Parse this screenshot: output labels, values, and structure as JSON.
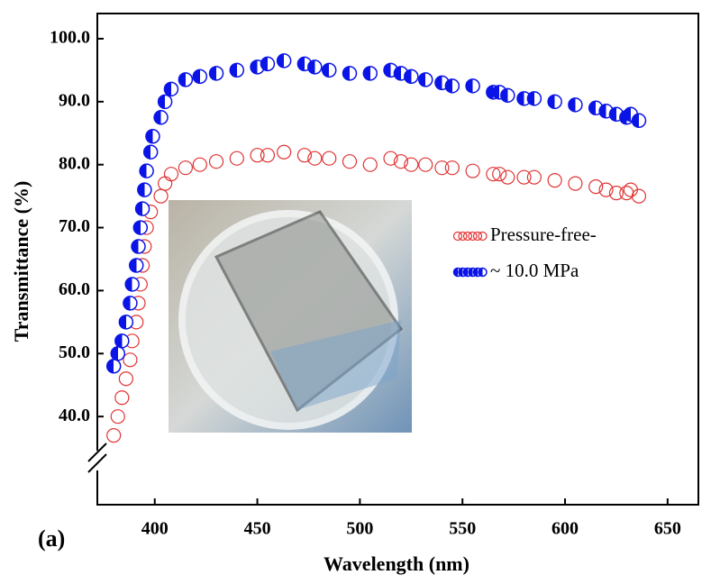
{
  "chart_data": {
    "type": "scatter",
    "xlabel": "Wavelength (nm)",
    "ylabel": "Transmittance (%)",
    "panel_label": "(a)",
    "xlim": [
      372,
      665
    ],
    "ylim": [
      26,
      104
    ],
    "xticks": [
      400,
      450,
      500,
      550,
      600,
      650
    ],
    "yticks": [
      {
        "value": 100,
        "label": "100.0"
      },
      {
        "value": 90,
        "label": "90.0"
      },
      {
        "value": 80,
        "label": "80.0"
      },
      {
        "value": 70,
        "label": "70.0"
      },
      {
        "value": 60,
        "label": "60.0"
      },
      {
        "value": 50,
        "label": "50.0"
      },
      {
        "value": 40,
        "label": "40.0"
      }
    ],
    "grid": false,
    "legend": "right",
    "series": [
      {
        "name": "Pressure-free-",
        "color": "#e03232",
        "marker": "open",
        "x": [
          380,
          382,
          384,
          386,
          388,
          389,
          391,
          392,
          393,
          394,
          395,
          396,
          398,
          403,
          405,
          408,
          415,
          422,
          430,
          440,
          450,
          455,
          463,
          473,
          478,
          485,
          495,
          505,
          515,
          520,
          525,
          532,
          540,
          545,
          555,
          565,
          568,
          572,
          580,
          585,
          595,
          605,
          615,
          620,
          625,
          630,
          632,
          636
        ],
        "values": [
          37,
          40,
          43,
          46,
          49,
          52,
          55,
          58,
          61,
          64,
          67,
          70,
          72.5,
          75,
          77,
          78.5,
          79.5,
          80,
          80.5,
          81,
          81.5,
          81.5,
          82,
          81.5,
          81,
          81,
          80.5,
          80,
          81,
          80.5,
          80,
          80,
          79.5,
          79.5,
          79,
          78.5,
          78.5,
          78,
          78,
          78,
          77.5,
          77,
          76.5,
          76,
          75.5,
          75.5,
          76,
          75
        ]
      },
      {
        "name": "~ 10.0 MPa",
        "color": "#0a14e6",
        "marker": "half-filled",
        "x": [
          380,
          382,
          384,
          386,
          388,
          389,
          391,
          392,
          393,
          394,
          395,
          396,
          398,
          399,
          403,
          405,
          408,
          415,
          422,
          430,
          440,
          450,
          455,
          463,
          473,
          478,
          485,
          495,
          505,
          515,
          520,
          525,
          532,
          540,
          545,
          555,
          565,
          568,
          572,
          580,
          585,
          595,
          605,
          615,
          620,
          625,
          630,
          632,
          636
        ],
        "values": [
          48,
          50,
          52,
          55,
          58,
          61,
          64,
          67,
          70,
          73,
          76,
          79,
          82,
          84.5,
          87.5,
          90,
          92,
          93.5,
          94,
          94.5,
          95,
          95.5,
          96,
          96.5,
          96,
          95.5,
          95,
          94.5,
          94.5,
          95,
          94.5,
          94,
          93.5,
          93,
          92.5,
          92.5,
          91.5,
          91.5,
          91,
          90.5,
          90.5,
          90,
          89.5,
          89,
          88.5,
          88,
          87.5,
          88,
          87
        ]
      }
    ]
  }
}
